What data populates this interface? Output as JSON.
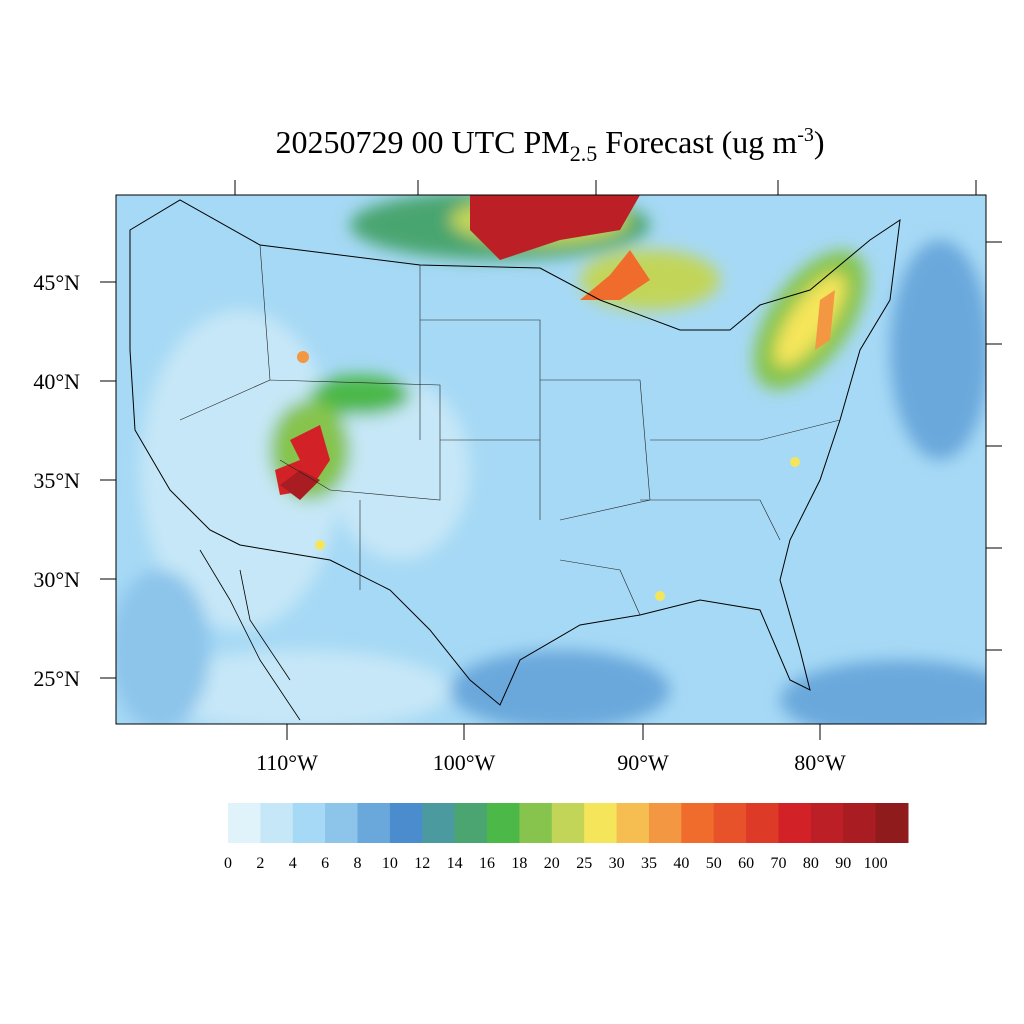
{
  "title": {
    "main": "20250729 00 UTC PM",
    "sub": "2.5",
    "rest": " Forecast (ug m",
    "sup": "-3",
    "end": ")"
  },
  "lat_labels": [
    "45°N",
    "40°N",
    "35°N",
    "30°N",
    "25°N"
  ],
  "lon_labels": [
    "110°W",
    "100°W",
    "90°W",
    "80°W"
  ],
  "colorbar": {
    "labels": [
      0,
      2,
      4,
      6,
      8,
      10,
      12,
      14,
      16,
      18,
      20,
      25,
      30,
      35,
      40,
      50,
      60,
      70,
      80,
      90,
      100
    ],
    "colors": [
      "#e0f3fb",
      "#c6e7f7",
      "#a6d9f5",
      "#8cc4ea",
      "#6aa8dc",
      "#4a8cce",
      "#4a9aa0",
      "#4aa570",
      "#4cb848",
      "#86c44e",
      "#c2d558",
      "#f5e55a",
      "#f6be50",
      "#f49742",
      "#ef6c2d",
      "#e8522a",
      "#dd3a28",
      "#d22228",
      "#bd1f26",
      "#a81c22",
      "#901b1d"
    ]
  }
}
